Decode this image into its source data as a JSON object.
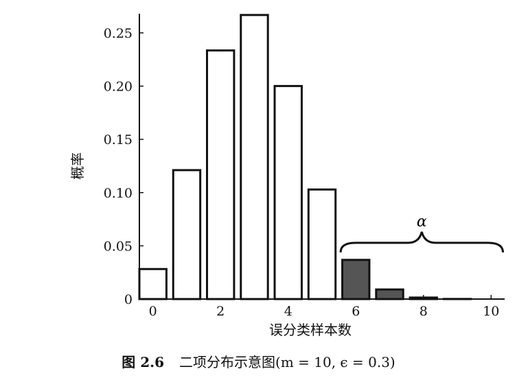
{
  "chart_data": {
    "type": "bar",
    "x": [
      0,
      1,
      2,
      3,
      4,
      5,
      6,
      7,
      8,
      9,
      10
    ],
    "values": [
      0.0282,
      0.1211,
      0.2335,
      0.2668,
      0.2001,
      0.1029,
      0.0368,
      0.009,
      0.0014,
      0.0001,
      0.0
    ],
    "highlighted_from_x": 6,
    "xticks": [
      0,
      2,
      4,
      6,
      8,
      10
    ],
    "yticks": [
      "0",
      "0.05",
      "0.10",
      "0.15",
      "0.20",
      "0.25"
    ],
    "ytick_values": [
      0,
      0.05,
      0.1,
      0.15,
      0.2,
      0.25
    ],
    "xlim": [
      -0.4,
      10.4
    ],
    "ylim": [
      0,
      0.268
    ],
    "xlabel": "误分类样本数",
    "ylabel": "概率",
    "brace_label": "α",
    "grid": false,
    "colors": {
      "bar_fill": "#ffffff",
      "highlight_fill": "#555555",
      "stroke": "#111111"
    }
  },
  "caption": {
    "figure_number": "图 2.6",
    "text": "二项分布示意图(m = 10, ϵ = 0.3)"
  }
}
